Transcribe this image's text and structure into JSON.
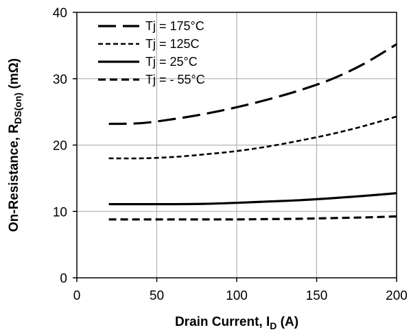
{
  "chart_data": {
    "type": "line",
    "xlabel": "Drain Current, I",
    "xlabel_sub": "D",
    "xlabel_suffix": " (A)",
    "ylabel": "On-Resistance, R",
    "ylabel_sub": "DS(on)",
    "ylabel_suffix": " (mΩ)",
    "xlim": [
      0,
      200
    ],
    "ylim": [
      0,
      40
    ],
    "xticks": [
      0,
      50,
      100,
      150,
      200
    ],
    "yticks": [
      0,
      10,
      20,
      30,
      40
    ],
    "grid": true,
    "legend_position": "top-left",
    "series": [
      {
        "name": "Tj = 175°C",
        "style": "long-dash",
        "x": [
          20,
          40,
          60,
          80,
          100,
          120,
          140,
          160,
          180,
          200
        ],
        "y": [
          23.2,
          23.3,
          23.9,
          24.7,
          25.7,
          26.9,
          28.3,
          30.0,
          32.3,
          35.2
        ]
      },
      {
        "name": "Tj = 125C",
        "style": "short-dash",
        "x": [
          20,
          40,
          60,
          80,
          100,
          120,
          140,
          160,
          180,
          200
        ],
        "y": [
          18.0,
          18.0,
          18.2,
          18.6,
          19.1,
          19.8,
          20.7,
          21.7,
          22.9,
          24.3
        ]
      },
      {
        "name": "Tj = 25°C",
        "style": "solid",
        "x": [
          20,
          40,
          60,
          80,
          100,
          120,
          140,
          160,
          180,
          200
        ],
        "y": [
          11.1,
          11.1,
          11.1,
          11.15,
          11.3,
          11.5,
          11.7,
          12.0,
          12.35,
          12.75
        ]
      },
      {
        "name": "Tj = - 55°C",
        "style": "medium-dash",
        "x": [
          20,
          40,
          60,
          80,
          100,
          120,
          140,
          160,
          180,
          200
        ],
        "y": [
          8.8,
          8.8,
          8.8,
          8.8,
          8.8,
          8.85,
          8.9,
          9.0,
          9.1,
          9.25
        ]
      }
    ]
  }
}
